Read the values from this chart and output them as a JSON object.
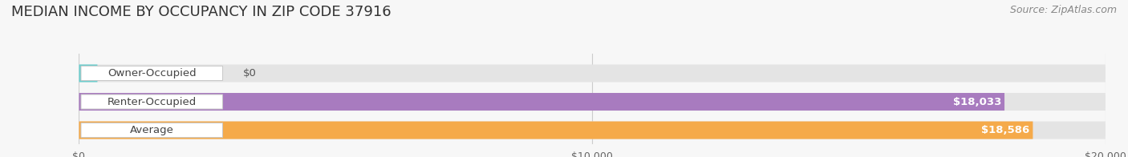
{
  "title": "MEDIAN INCOME BY OCCUPANCY IN ZIP CODE 37916",
  "source": "Source: ZipAtlas.com",
  "categories": [
    "Owner-Occupied",
    "Renter-Occupied",
    "Average"
  ],
  "values": [
    0,
    18033,
    18586
  ],
  "bar_colors": [
    "#6ecfcf",
    "#a87bbf",
    "#f5aa4a"
  ],
  "bar_labels": [
    "$0",
    "$18,033",
    "$18,586"
  ],
  "xlim": [
    0,
    20000
  ],
  "xticks": [
    0,
    10000,
    20000
  ],
  "xtick_labels": [
    "$0",
    "$10,000",
    "$20,000"
  ],
  "background_color": "#f7f7f7",
  "bar_bg_color": "#e4e4e4",
  "title_fontsize": 13,
  "source_fontsize": 9,
  "label_fontsize": 9.5,
  "tick_fontsize": 9
}
